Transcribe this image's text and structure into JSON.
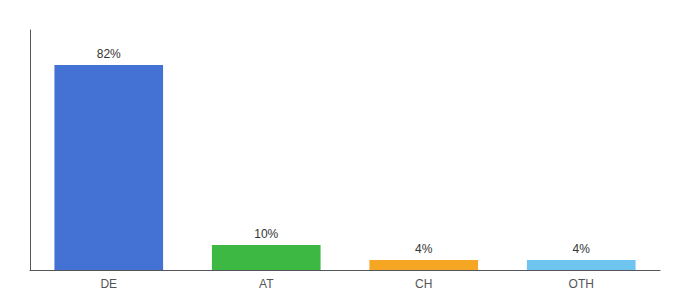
{
  "chart_data": {
    "type": "bar",
    "categories": [
      "DE",
      "AT",
      "CH",
      "OTH"
    ],
    "values": [
      82,
      10,
      4,
      4
    ],
    "value_labels": [
      "82%",
      "10%",
      "4%",
      "4%"
    ],
    "colors": [
      "#4472d4",
      "#3db843",
      "#f5a623",
      "#6ec6f0"
    ],
    "ylim": [
      0,
      96
    ],
    "data_labels": true,
    "tick_labels": "x",
    "grid": false
  }
}
